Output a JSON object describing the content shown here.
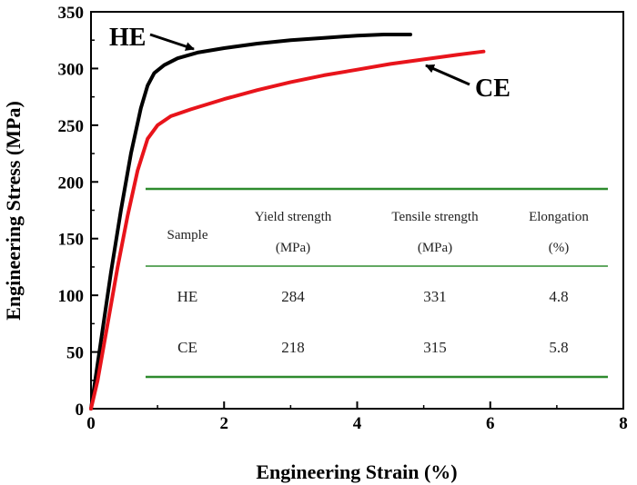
{
  "chart_data": {
    "type": "line",
    "xlabel": "Engineering Strain (%)",
    "ylabel": "Engineering Stress (MPa)",
    "xlim": [
      0,
      8
    ],
    "ylim": [
      0,
      350
    ],
    "x_ticks": [
      "0",
      "2",
      "4",
      "6",
      "8"
    ],
    "y_ticks": [
      "0",
      "50",
      "100",
      "150",
      "200",
      "250",
      "300",
      "350"
    ],
    "grid": false,
    "series": [
      {
        "name": "HE",
        "color": "#000000",
        "points": [
          [
            0,
            0
          ],
          [
            0.05,
            20
          ],
          [
            0.15,
            60
          ],
          [
            0.3,
            120
          ],
          [
            0.45,
            175
          ],
          [
            0.6,
            225
          ],
          [
            0.75,
            265
          ],
          [
            0.85,
            285
          ],
          [
            0.95,
            296
          ],
          [
            1.1,
            303
          ],
          [
            1.3,
            309
          ],
          [
            1.6,
            314
          ],
          [
            2,
            318
          ],
          [
            2.5,
            322
          ],
          [
            3,
            325
          ],
          [
            3.5,
            327
          ],
          [
            4,
            329
          ],
          [
            4.4,
            330
          ],
          [
            4.8,
            330
          ]
        ]
      },
      {
        "name": "CE",
        "color": "#e8141b",
        "points": [
          [
            0,
            0
          ],
          [
            0.1,
            25
          ],
          [
            0.25,
            75
          ],
          [
            0.4,
            125
          ],
          [
            0.55,
            170
          ],
          [
            0.7,
            210
          ],
          [
            0.85,
            238
          ],
          [
            1.0,
            250
          ],
          [
            1.2,
            258
          ],
          [
            1.5,
            264
          ],
          [
            2,
            273
          ],
          [
            2.5,
            281
          ],
          [
            3,
            288
          ],
          [
            3.5,
            294
          ],
          [
            4,
            299
          ],
          [
            4.5,
            304
          ],
          [
            5,
            308
          ],
          [
            5.5,
            312
          ],
          [
            5.9,
            315
          ]
        ]
      }
    ],
    "annotations": [
      {
        "text": "HE",
        "series": "HE"
      },
      {
        "text": "CE",
        "series": "CE"
      }
    ],
    "inset_table": {
      "headers": [
        {
          "line1": "Sample",
          "line2": ""
        },
        {
          "line1": "Yield strength",
          "line2": "(MPa)"
        },
        {
          "line1": "Tensile strength",
          "line2": "(MPa)"
        },
        {
          "line1": "Elongation",
          "line2": "(%)"
        }
      ],
      "rows": [
        [
          "HE",
          "284",
          "331",
          "4.8"
        ],
        [
          "CE",
          "218",
          "315",
          "5.8"
        ]
      ],
      "rule_color": "#2e8b2e"
    }
  }
}
